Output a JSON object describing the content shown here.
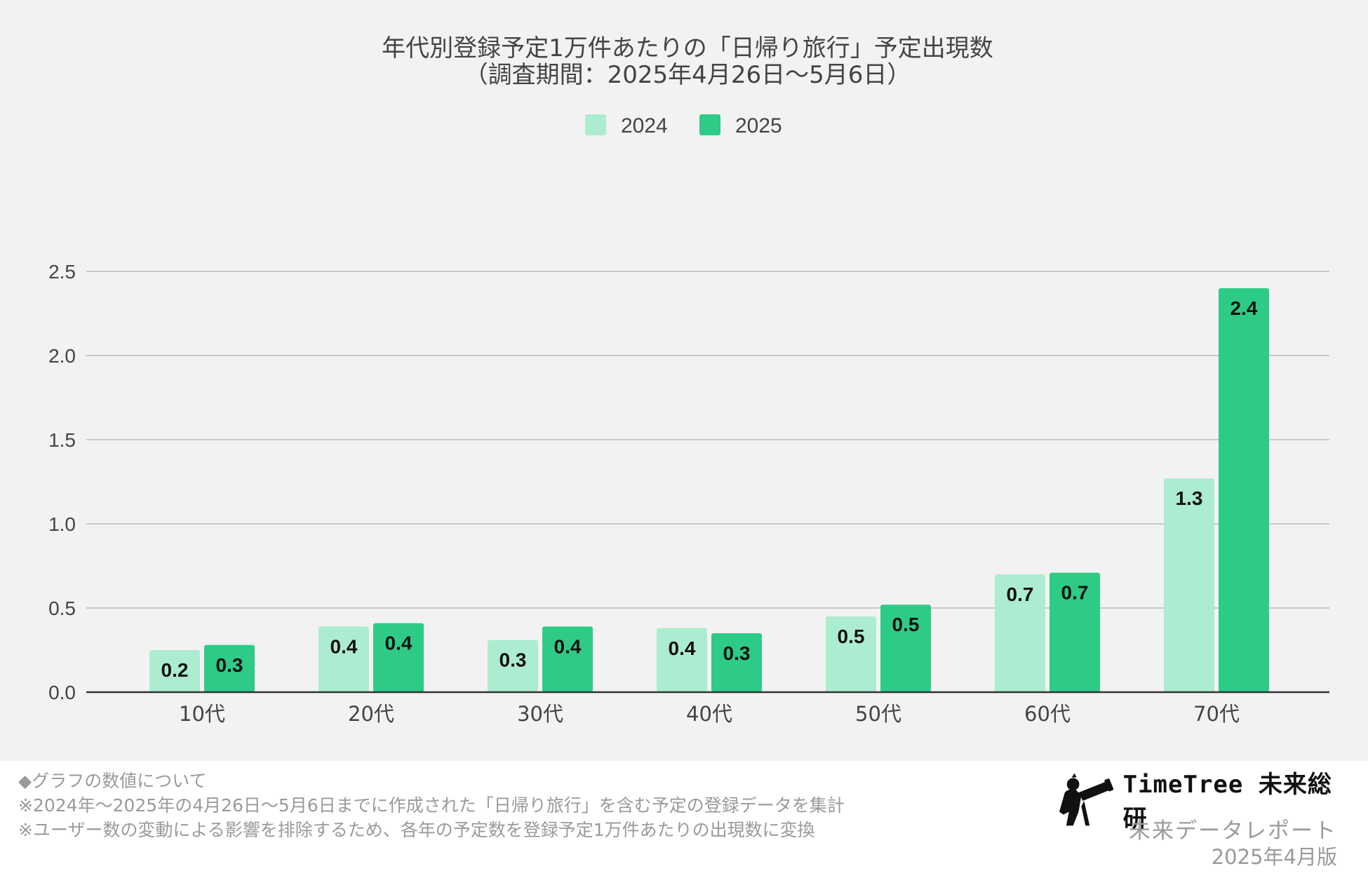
{
  "chart_data": {
    "type": "bar",
    "title_line1": "年代別登録予定1万件あたりの「日帰り旅行」予定出現数",
    "title_line2": "（調査期間：2025年4月26日〜5月6日）",
    "categories": [
      "10代",
      "20代",
      "30代",
      "40代",
      "50代",
      "60代",
      "70代"
    ],
    "series": [
      {
        "name": "2024",
        "color": "#acecd0",
        "values": [
          0.25,
          0.39,
          0.31,
          0.38,
          0.45,
          0.7,
          1.27
        ],
        "labels": [
          "0.2",
          "0.4",
          "0.3",
          "0.4",
          "0.5",
          "0.7",
          "1.3"
        ]
      },
      {
        "name": "2025",
        "color": "#2ecb87",
        "values": [
          0.28,
          0.41,
          0.39,
          0.35,
          0.52,
          0.71,
          2.4
        ],
        "labels": [
          "0.3",
          "0.4",
          "0.4",
          "0.3",
          "0.5",
          "0.7",
          "2.4"
        ]
      }
    ],
    "ylim": [
      0,
      2.5
    ],
    "yticks": [
      "0.0",
      "0.5",
      "1.0",
      "1.5",
      "2.0",
      "2.5"
    ],
    "ytick_values": [
      0,
      0.5,
      1.0,
      1.5,
      2.0,
      2.5
    ],
    "xlabel": "",
    "ylabel": "",
    "legend_position": "top-center",
    "grid": true
  },
  "notes": {
    "heading": "◆グラフの数値について",
    "line1": "※2024年〜2025年の4月26日〜5月6日までに作成された「日帰り旅行」を含む予定の登録データを集計",
    "line2": "※ユーザー数の変動による影響を排除するため、各年の予定数を登録予定1万件あたりの出現数に変換"
  },
  "brand": {
    "name": "TimeTree 未来総研",
    "subtitle": "未来データレポート",
    "edition": "2025年4月版",
    "logo_icon": "telescope-person-icon"
  }
}
